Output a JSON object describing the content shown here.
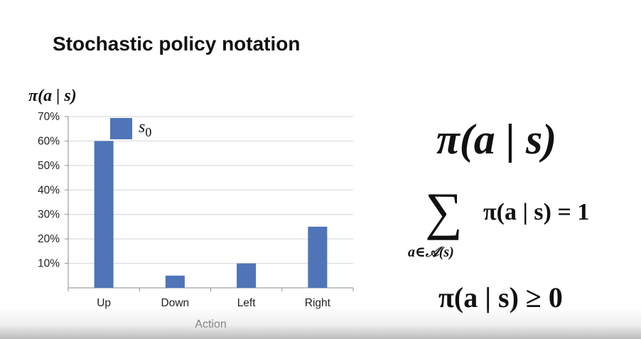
{
  "slide": {
    "title": "Stochastic policy notation",
    "formula_main": "π(a | s)",
    "sum_symbol": "∑",
    "sum_subscript": "a∈𝒜(s)",
    "sum_expression": "π(a | s) = 1",
    "nonnegativity": "π(a | s) ≥ 0"
  },
  "chart_data": {
    "type": "bar",
    "ylabel": "π(a | s)",
    "xlabel": "Action",
    "categories": [
      "Up",
      "Down",
      "Left",
      "Right"
    ],
    "series": [
      {
        "name": "s0",
        "name_base": "s",
        "name_subscript": "0",
        "values": [
          0.6,
          0.05,
          0.1,
          0.25
        ]
      }
    ],
    "yticks": [
      "10%",
      "20%",
      "30%",
      "40%",
      "50%",
      "60%",
      "70%"
    ],
    "ylim": [
      0,
      0.7
    ],
    "grid": true,
    "legend_position": "top-left",
    "bar_color": "#4f75b8"
  }
}
